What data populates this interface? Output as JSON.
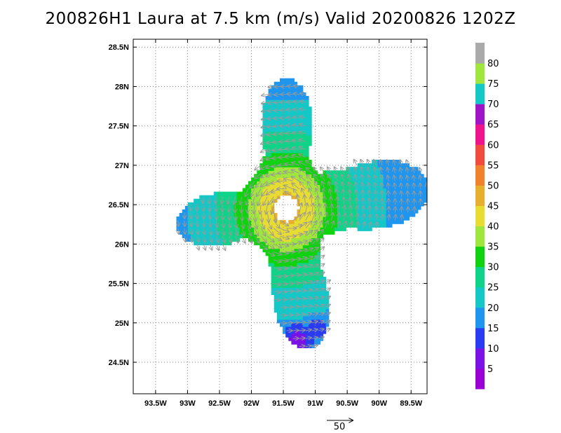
{
  "title": "200826H1 Laura at 7.5 km (m/s) Valid 20200826 1202Z",
  "axes": {
    "lon_ticks": [
      {
        "value": -93.5,
        "label": "93.5W"
      },
      {
        "value": -93.0,
        "label": "93W"
      },
      {
        "value": -92.5,
        "label": "92.5W"
      },
      {
        "value": -92.0,
        "label": "92W"
      },
      {
        "value": -91.5,
        "label": "91.5W"
      },
      {
        "value": -91.0,
        "label": "91W"
      },
      {
        "value": -90.5,
        "label": "90.5W"
      },
      {
        "value": -90.0,
        "label": "90W"
      },
      {
        "value": -89.5,
        "label": "89.5W"
      }
    ],
    "lat_ticks": [
      {
        "value": 24.5,
        "label": "24.5N"
      },
      {
        "value": 25.0,
        "label": "25N"
      },
      {
        "value": 25.5,
        "label": "25.5N"
      },
      {
        "value": 26.0,
        "label": "26N"
      },
      {
        "value": 26.5,
        "label": "26.5N"
      },
      {
        "value": 27.0,
        "label": "27N"
      },
      {
        "value": 27.5,
        "label": "27.5N"
      },
      {
        "value": 28.0,
        "label": "28N"
      },
      {
        "value": 28.5,
        "label": "28.5N"
      }
    ],
    "lon_range": [
      -93.85,
      -89.25
    ],
    "lat_range": [
      24.1,
      28.6
    ],
    "grid": "dotted"
  },
  "colorbar": {
    "labels": [
      "5",
      "10",
      "15",
      "20",
      "25",
      "30",
      "35",
      "40",
      "45",
      "50",
      "55",
      "60",
      "65",
      "70",
      "75",
      "80"
    ],
    "colors": [
      "#9a00d6",
      "#7a12e6",
      "#2a3cf2",
      "#1e96f0",
      "#14c8c8",
      "#10d38a",
      "#10d310",
      "#a0e63c",
      "#e6dc32",
      "#e6af2d",
      "#f0822d",
      "#f04b3c",
      "#f0148c",
      "#a014c8",
      "#14c8c8",
      "#a0e63c",
      "#aaaaaa"
    ]
  },
  "storm_center": {
    "lon": -91.45,
    "lat": 26.45
  },
  "reference_vector": {
    "label": "50"
  },
  "chart_data": {
    "type": "heatmap",
    "title": "200826H1 Laura at 7.5 km (m/s) Valid 20200826 1202Z",
    "variable": "wind speed",
    "units": "m/s",
    "xlabel": "",
    "ylabel": "",
    "xlim": [
      -93.85,
      -89.25
    ],
    "ylim": [
      24.1,
      28.6
    ],
    "colorbar_levels": [
      5,
      10,
      15,
      20,
      25,
      30,
      35,
      40,
      45,
      50,
      55,
      60,
      65,
      70,
      75,
      80
    ],
    "center": {
      "lon": -91.45,
      "lat": 26.45
    },
    "eye_radius_deg": 0.17,
    "radial_speed_profile": [
      {
        "radius_deg": 0.2,
        "speed": 45
      },
      {
        "radius_deg": 0.35,
        "speed": 42
      },
      {
        "radius_deg": 0.5,
        "speed": 36
      },
      {
        "radius_deg": 0.8,
        "speed": 28
      },
      {
        "radius_deg": 1.2,
        "speed": 22
      },
      {
        "radius_deg": 1.6,
        "speed": 18
      }
    ],
    "arms": [
      {
        "name": "north",
        "bearing_deg": 0,
        "extent_deg": 1.65
      },
      {
        "name": "east",
        "bearing_deg": 82,
        "extent_deg": 2.0
      },
      {
        "name": "south",
        "bearing_deg": 170,
        "extent_deg": 1.8
      },
      {
        "name": "west",
        "bearing_deg": 262,
        "extent_deg": 1.55
      }
    ],
    "notable_regions": [
      {
        "lon": -91.0,
        "lat": 24.9,
        "speed": 10
      },
      {
        "lon": -91.3,
        "lat": 24.75,
        "speed": 5
      }
    ]
  }
}
